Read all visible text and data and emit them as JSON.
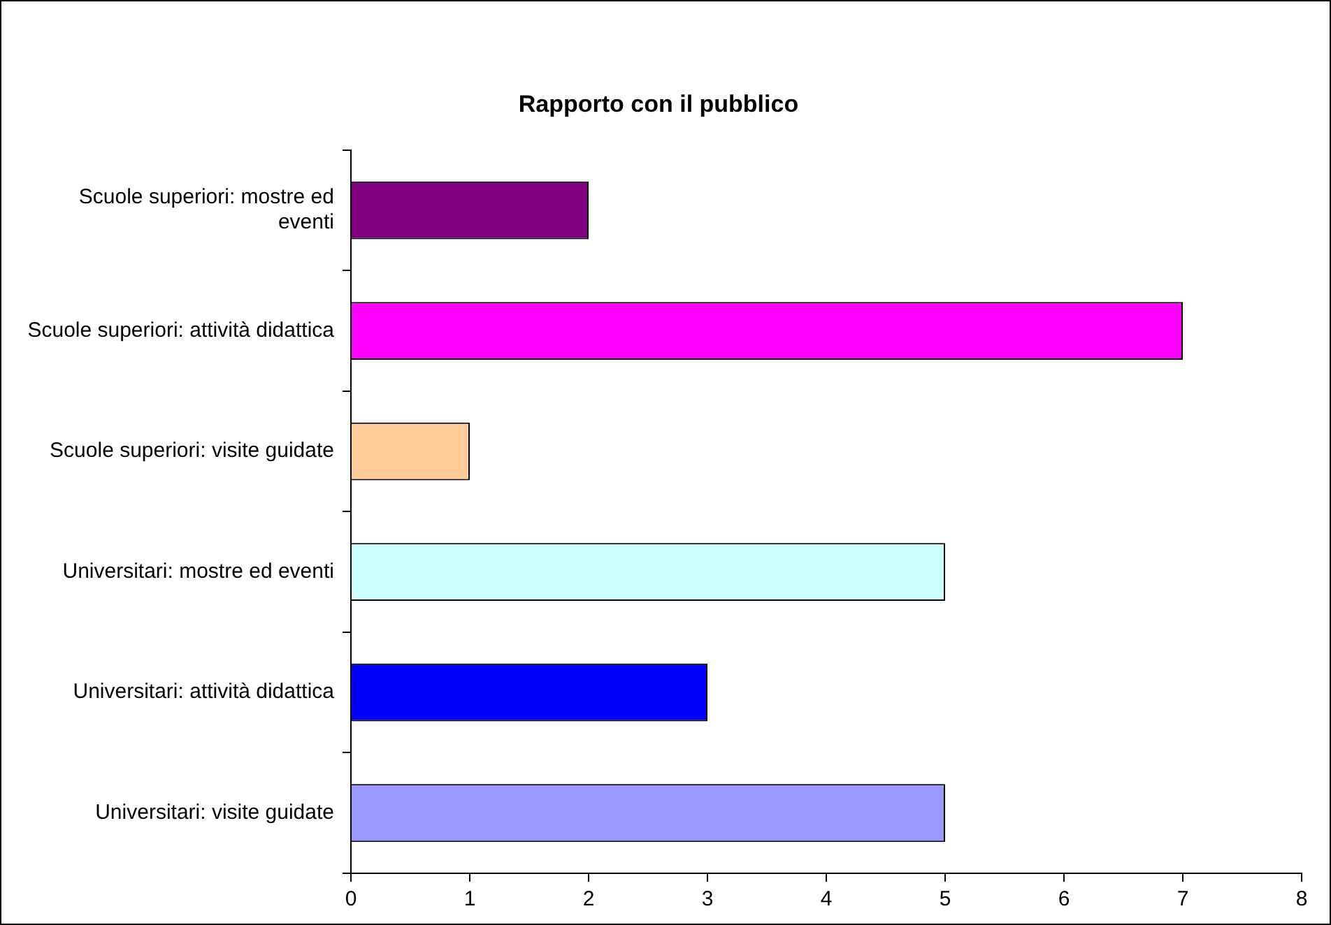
{
  "chart_data": {
    "type": "bar",
    "orientation": "horizontal",
    "title": "Rapporto con il pubblico",
    "categories": [
      "Scuole superiori: mostre ed eventi",
      "Scuole superiori: attività didattica",
      "Scuole superiori: visite guidate",
      "Universitari: mostre ed eventi",
      "Universitari: attività didattica",
      "Universitari: visite guidate"
    ],
    "values": [
      2,
      7,
      1,
      5,
      3,
      5
    ],
    "colors": [
      "#800080",
      "#ff00ff",
      "#ffcc99",
      "#ccffff",
      "#0000ff",
      "#9999ff"
    ],
    "xlim": [
      0,
      8
    ],
    "xticks": [
      0,
      1,
      2,
      3,
      4,
      5,
      6,
      7,
      8
    ],
    "grid": false,
    "legend": false
  }
}
